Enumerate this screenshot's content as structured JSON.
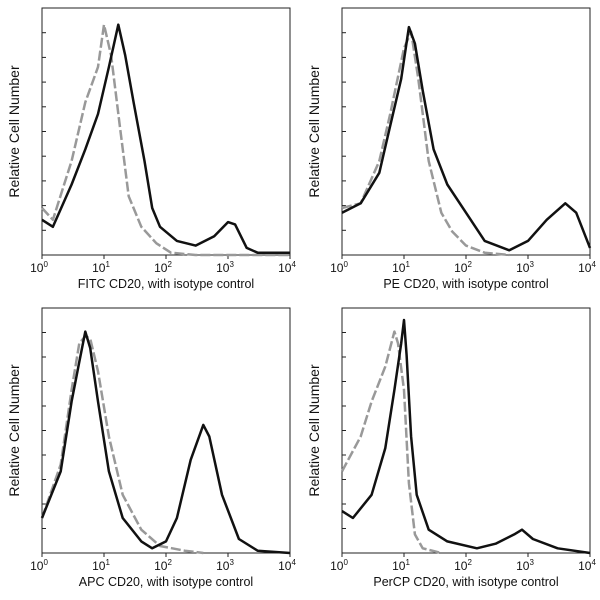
{
  "chart_data": [
    {
      "type": "line",
      "xlabel": "FITC  CD20,  with isotype control",
      "ylabel": "Relative Cell Number",
      "xscale": "log",
      "xlim": [
        1,
        10000
      ],
      "xticks": [
        "10^0",
        "10^1",
        "10^2",
        "10^3",
        "10^4"
      ],
      "series": [
        {
          "role": "sample",
          "color": "#111111",
          "style": "solid",
          "points": [
            [
              1,
              15
            ],
            [
              1.5,
              12
            ],
            [
              3,
              30
            ],
            [
              5,
              45
            ],
            [
              8,
              60
            ],
            [
              12,
              80
            ],
            [
              17,
              98
            ],
            [
              22,
              85
            ],
            [
              30,
              65
            ],
            [
              45,
              40
            ],
            [
              60,
              20
            ],
            [
              80,
              12
            ],
            [
              150,
              6
            ],
            [
              300,
              4
            ],
            [
              600,
              8
            ],
            [
              1000,
              14
            ],
            [
              1300,
              13
            ],
            [
              2000,
              3
            ],
            [
              3000,
              1
            ],
            [
              10000,
              1
            ]
          ]
        },
        {
          "role": "isotype control",
          "color": "#999999",
          "style": "dashed",
          "points": [
            [
              1,
              20
            ],
            [
              1.5,
              15
            ],
            [
              3,
              40
            ],
            [
              5,
              65
            ],
            [
              8,
              80
            ],
            [
              10,
              98
            ],
            [
              13,
              85
            ],
            [
              18,
              55
            ],
            [
              25,
              25
            ],
            [
              40,
              12
            ],
            [
              70,
              5
            ],
            [
              120,
              1
            ],
            [
              300,
              0
            ],
            [
              10000,
              0
            ]
          ]
        }
      ]
    },
    {
      "type": "line",
      "xlabel": "PE CD20, with isotype control",
      "ylabel": "Relative Cell Number",
      "xscale": "log",
      "xlim": [
        1,
        10000
      ],
      "xticks": [
        "10^0",
        "10^1",
        "10^2",
        "10^3",
        "10^4"
      ],
      "series": [
        {
          "role": "sample",
          "color": "#111111",
          "style": "solid",
          "points": [
            [
              1,
              18
            ],
            [
              2,
              22
            ],
            [
              4,
              35
            ],
            [
              6,
              55
            ],
            [
              9,
              75
            ],
            [
              12,
              97
            ],
            [
              15,
              90
            ],
            [
              20,
              70
            ],
            [
              30,
              45
            ],
            [
              50,
              30
            ],
            [
              100,
              18
            ],
            [
              200,
              6
            ],
            [
              500,
              2
            ],
            [
              1000,
              6
            ],
            [
              2000,
              15
            ],
            [
              4000,
              22
            ],
            [
              6000,
              18
            ],
            [
              10000,
              3
            ]
          ]
        },
        {
          "role": "isotype control",
          "color": "#999999",
          "style": "dashed",
          "points": [
            [
              1,
              20
            ],
            [
              2,
              22
            ],
            [
              4,
              40
            ],
            [
              6,
              60
            ],
            [
              10,
              88
            ],
            [
              13,
              95
            ],
            [
              17,
              75
            ],
            [
              25,
              40
            ],
            [
              40,
              18
            ],
            [
              60,
              10
            ],
            [
              100,
              4
            ],
            [
              200,
              1
            ],
            [
              500,
              0
            ]
          ]
        }
      ]
    },
    {
      "type": "line",
      "xlabel": "APC CD20, with isotype control",
      "ylabel": "Relative Cell Number",
      "xscale": "log",
      "xlim": [
        1,
        10000
      ],
      "xticks": [
        "10^0",
        "10^1",
        "10^2",
        "10^3",
        "10^4"
      ],
      "series": [
        {
          "role": "sample",
          "color": "#111111",
          "style": "solid",
          "points": [
            [
              1,
              15
            ],
            [
              2,
              35
            ],
            [
              3,
              65
            ],
            [
              4,
              82
            ],
            [
              5,
              95
            ],
            [
              6,
              88
            ],
            [
              8,
              65
            ],
            [
              12,
              35
            ],
            [
              20,
              15
            ],
            [
              40,
              5
            ],
            [
              60,
              2
            ],
            [
              100,
              5
            ],
            [
              150,
              15
            ],
            [
              250,
              40
            ],
            [
              400,
              55
            ],
            [
              500,
              50
            ],
            [
              800,
              25
            ],
            [
              1500,
              6
            ],
            [
              3000,
              1
            ],
            [
              10000,
              0
            ]
          ]
        },
        {
          "role": "isotype control",
          "color": "#999999",
          "style": "dashed",
          "points": [
            [
              1,
              15
            ],
            [
              2,
              38
            ],
            [
              3,
              70
            ],
            [
              4,
              90
            ],
            [
              5,
              93
            ],
            [
              6,
              92
            ],
            [
              8,
              78
            ],
            [
              12,
              50
            ],
            [
              20,
              25
            ],
            [
              40,
              10
            ],
            [
              80,
              3
            ],
            [
              200,
              1
            ],
            [
              400,
              0
            ]
          ]
        }
      ]
    },
    {
      "type": "line",
      "xlabel": "PerCP CD20, with isotype control",
      "ylabel": "Relative Cell Number",
      "xscale": "log",
      "xlim": [
        1,
        10000
      ],
      "xticks": [
        "10^0",
        "10^1",
        "10^2",
        "10^3",
        "10^4"
      ],
      "series": [
        {
          "role": "sample",
          "color": "#111111",
          "style": "solid",
          "points": [
            [
              1,
              18
            ],
            [
              1.5,
              15
            ],
            [
              3,
              25
            ],
            [
              5,
              45
            ],
            [
              7,
              70
            ],
            [
              9,
              90
            ],
            [
              10,
              100
            ],
            [
              11,
              85
            ],
            [
              13,
              50
            ],
            [
              16,
              25
            ],
            [
              25,
              10
            ],
            [
              50,
              5
            ],
            [
              150,
              2
            ],
            [
              300,
              4
            ],
            [
              600,
              8
            ],
            [
              800,
              10
            ],
            [
              1200,
              6
            ],
            [
              3000,
              2
            ],
            [
              10000,
              0
            ]
          ]
        },
        {
          "role": "isotype control",
          "color": "#999999",
          "style": "dashed",
          "points": [
            [
              1,
              35
            ],
            [
              2,
              50
            ],
            [
              3,
              65
            ],
            [
              5,
              80
            ],
            [
              7,
              95
            ],
            [
              8,
              90
            ],
            [
              10,
              70
            ],
            [
              12,
              30
            ],
            [
              15,
              8
            ],
            [
              20,
              2
            ],
            [
              40,
              0
            ]
          ]
        }
      ]
    }
  ]
}
